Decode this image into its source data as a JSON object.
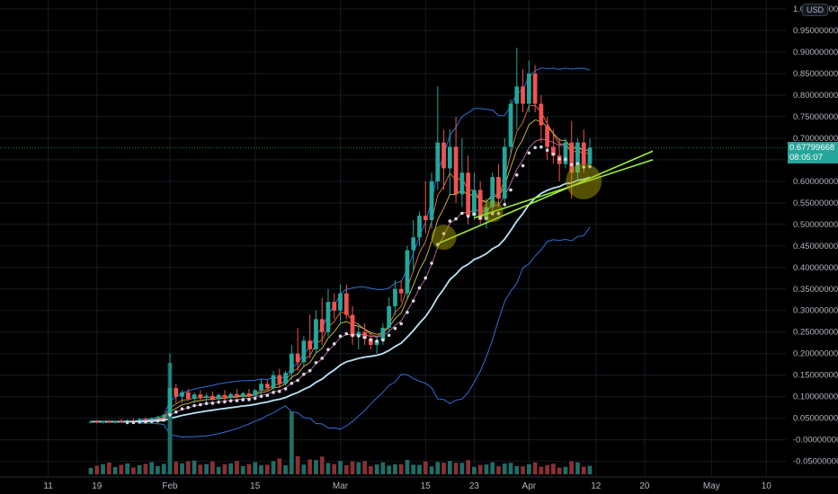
{
  "currency": "USD",
  "last_price": {
    "value": "0.67799668",
    "countdown": "08:05:07"
  },
  "colors": {
    "background": "#000000",
    "grid": "#151c24",
    "up": "#26a69a",
    "down": "#ef5350",
    "bb": "#2f6fd8",
    "ma_slow": "#b9e3f5",
    "psar": "#d8d8e4",
    "trendline": "#9cf03c",
    "circle": "#b8b000",
    "text": "#b2b5be"
  },
  "chart_data": {
    "type": "candlestick",
    "title": "",
    "y_ticks": [
      "1.00000000",
      "0.95000000",
      "0.90000000",
      "0.85000000",
      "0.80000000",
      "0.75000000",
      "0.70000000",
      "0.65000000",
      "0.60000000",
      "0.55000000",
      "0.50000000",
      "0.45000000",
      "0.40000000",
      "0.35000000",
      "0.30000000",
      "0.25000000",
      "0.20000000",
      "0.15000000",
      "0.10000000",
      "0.05000000",
      "-0.00000000",
      "-0.05000000"
    ],
    "ylim": [
      -0.055,
      1.0
    ],
    "x_ticks": [
      {
        "label": "11",
        "day": -20
      },
      {
        "label": "19",
        "day": -12
      },
      {
        "label": "Feb",
        "day": 0
      },
      {
        "label": "15",
        "day": 14
      },
      {
        "label": "Mar",
        "day": 28
      },
      {
        "label": "15",
        "day": 42
      },
      {
        "label": "23",
        "day": 50
      },
      {
        "label": "Apr",
        "day": 59
      },
      {
        "label": "12",
        "day": 70
      },
      {
        "label": "20",
        "day": 78
      },
      {
        "label": "May",
        "day": 89
      },
      {
        "label": "10",
        "day": 98
      }
    ],
    "candles": [
      {
        "o": 0.04,
        "h": 0.045,
        "l": 0.038,
        "c": 0.042
      },
      {
        "o": 0.042,
        "h": 0.046,
        "l": 0.038,
        "c": 0.04
      },
      {
        "o": 0.04,
        "h": 0.045,
        "l": 0.038,
        "c": 0.043
      },
      {
        "o": 0.043,
        "h": 0.046,
        "l": 0.039,
        "c": 0.041
      },
      {
        "o": 0.041,
        "h": 0.045,
        "l": 0.038,
        "c": 0.044
      },
      {
        "o": 0.044,
        "h": 0.048,
        "l": 0.04,
        "c": 0.042
      },
      {
        "o": 0.042,
        "h": 0.047,
        "l": 0.04,
        "c": 0.045
      },
      {
        "o": 0.045,
        "h": 0.05,
        "l": 0.042,
        "c": 0.043
      },
      {
        "o": 0.043,
        "h": 0.05,
        "l": 0.041,
        "c": 0.048
      },
      {
        "o": 0.048,
        "h": 0.052,
        "l": 0.044,
        "c": 0.046
      },
      {
        "o": 0.046,
        "h": 0.052,
        "l": 0.044,
        "c": 0.05
      },
      {
        "o": 0.05,
        "h": 0.056,
        "l": 0.046,
        "c": 0.053
      },
      {
        "o": 0.053,
        "h": 0.06,
        "l": 0.048,
        "c": 0.058
      },
      {
        "o": 0.058,
        "h": 0.2,
        "l": 0.05,
        "c": 0.12
      },
      {
        "o": 0.12,
        "h": 0.13,
        "l": 0.085,
        "c": 0.1
      },
      {
        "o": 0.1,
        "h": 0.115,
        "l": 0.085,
        "c": 0.11
      },
      {
        "o": 0.11,
        "h": 0.118,
        "l": 0.09,
        "c": 0.095
      },
      {
        "o": 0.095,
        "h": 0.11,
        "l": 0.085,
        "c": 0.105
      },
      {
        "o": 0.105,
        "h": 0.115,
        "l": 0.09,
        "c": 0.098
      },
      {
        "o": 0.098,
        "h": 0.108,
        "l": 0.088,
        "c": 0.102
      },
      {
        "o": 0.102,
        "h": 0.112,
        "l": 0.09,
        "c": 0.094
      },
      {
        "o": 0.094,
        "h": 0.108,
        "l": 0.088,
        "c": 0.104
      },
      {
        "o": 0.104,
        "h": 0.115,
        "l": 0.092,
        "c": 0.098
      },
      {
        "o": 0.098,
        "h": 0.11,
        "l": 0.09,
        "c": 0.106
      },
      {
        "o": 0.106,
        "h": 0.118,
        "l": 0.096,
        "c": 0.1
      },
      {
        "o": 0.1,
        "h": 0.112,
        "l": 0.092,
        "c": 0.108
      },
      {
        "o": 0.108,
        "h": 0.118,
        "l": 0.098,
        "c": 0.102
      },
      {
        "o": 0.102,
        "h": 0.118,
        "l": 0.095,
        "c": 0.115
      },
      {
        "o": 0.115,
        "h": 0.14,
        "l": 0.105,
        "c": 0.13
      },
      {
        "o": 0.13,
        "h": 0.14,
        "l": 0.115,
        "c": 0.12
      },
      {
        "o": 0.12,
        "h": 0.16,
        "l": 0.115,
        "c": 0.15
      },
      {
        "o": 0.15,
        "h": 0.165,
        "l": 0.12,
        "c": 0.13
      },
      {
        "o": 0.13,
        "h": 0.16,
        "l": 0.125,
        "c": 0.155
      },
      {
        "o": 0.155,
        "h": 0.22,
        "l": 0.14,
        "c": 0.2
      },
      {
        "o": 0.2,
        "h": 0.26,
        "l": 0.16,
        "c": 0.18
      },
      {
        "o": 0.18,
        "h": 0.24,
        "l": 0.17,
        "c": 0.23
      },
      {
        "o": 0.23,
        "h": 0.29,
        "l": 0.19,
        "c": 0.21
      },
      {
        "o": 0.21,
        "h": 0.3,
        "l": 0.2,
        "c": 0.28
      },
      {
        "o": 0.28,
        "h": 0.33,
        "l": 0.22,
        "c": 0.25
      },
      {
        "o": 0.25,
        "h": 0.35,
        "l": 0.24,
        "c": 0.32
      },
      {
        "o": 0.32,
        "h": 0.34,
        "l": 0.28,
        "c": 0.3
      },
      {
        "o": 0.3,
        "h": 0.36,
        "l": 0.27,
        "c": 0.34
      },
      {
        "o": 0.34,
        "h": 0.36,
        "l": 0.28,
        "c": 0.29
      },
      {
        "o": 0.29,
        "h": 0.31,
        "l": 0.22,
        "c": 0.24
      },
      {
        "o": 0.24,
        "h": 0.27,
        "l": 0.21,
        "c": 0.25
      },
      {
        "o": 0.25,
        "h": 0.27,
        "l": 0.22,
        "c": 0.235
      },
      {
        "o": 0.235,
        "h": 0.25,
        "l": 0.21,
        "c": 0.22
      },
      {
        "o": 0.22,
        "h": 0.24,
        "l": 0.2,
        "c": 0.23
      },
      {
        "o": 0.23,
        "h": 0.27,
        "l": 0.22,
        "c": 0.26
      },
      {
        "o": 0.26,
        "h": 0.33,
        "l": 0.25,
        "c": 0.31
      },
      {
        "o": 0.31,
        "h": 0.37,
        "l": 0.29,
        "c": 0.35
      },
      {
        "o": 0.35,
        "h": 0.37,
        "l": 0.32,
        "c": 0.34
      },
      {
        "o": 0.34,
        "h": 0.45,
        "l": 0.33,
        "c": 0.44
      },
      {
        "o": 0.44,
        "h": 0.51,
        "l": 0.39,
        "c": 0.47
      },
      {
        "o": 0.47,
        "h": 0.53,
        "l": 0.45,
        "c": 0.52
      },
      {
        "o": 0.52,
        "h": 0.6,
        "l": 0.48,
        "c": 0.51
      },
      {
        "o": 0.51,
        "h": 0.62,
        "l": 0.49,
        "c": 0.6
      },
      {
        "o": 0.6,
        "h": 0.82,
        "l": 0.58,
        "c": 0.69
      },
      {
        "o": 0.69,
        "h": 0.72,
        "l": 0.58,
        "c": 0.63
      },
      {
        "o": 0.63,
        "h": 0.72,
        "l": 0.57,
        "c": 0.68
      },
      {
        "o": 0.68,
        "h": 0.75,
        "l": 0.55,
        "c": 0.57
      },
      {
        "o": 0.57,
        "h": 0.7,
        "l": 0.54,
        "c": 0.62
      },
      {
        "o": 0.62,
        "h": 0.66,
        "l": 0.5,
        "c": 0.52
      },
      {
        "o": 0.52,
        "h": 0.62,
        "l": 0.51,
        "c": 0.58
      },
      {
        "o": 0.58,
        "h": 0.6,
        "l": 0.5,
        "c": 0.51
      },
      {
        "o": 0.51,
        "h": 0.56,
        "l": 0.49,
        "c": 0.54
      },
      {
        "o": 0.54,
        "h": 0.62,
        "l": 0.53,
        "c": 0.61
      },
      {
        "o": 0.61,
        "h": 0.64,
        "l": 0.54,
        "c": 0.56
      },
      {
        "o": 0.56,
        "h": 0.7,
        "l": 0.55,
        "c": 0.68
      },
      {
        "o": 0.68,
        "h": 0.79,
        "l": 0.66,
        "c": 0.78
      },
      {
        "o": 0.78,
        "h": 0.91,
        "l": 0.72,
        "c": 0.82
      },
      {
        "o": 0.82,
        "h": 0.86,
        "l": 0.76,
        "c": 0.78
      },
      {
        "o": 0.78,
        "h": 0.88,
        "l": 0.76,
        "c": 0.85
      },
      {
        "o": 0.85,
        "h": 0.87,
        "l": 0.76,
        "c": 0.78
      },
      {
        "o": 0.78,
        "h": 0.8,
        "l": 0.69,
        "c": 0.73
      },
      {
        "o": 0.73,
        "h": 0.75,
        "l": 0.65,
        "c": 0.68
      },
      {
        "o": 0.68,
        "h": 0.72,
        "l": 0.64,
        "c": 0.66
      },
      {
        "o": 0.66,
        "h": 0.7,
        "l": 0.6,
        "c": 0.64
      },
      {
        "o": 0.64,
        "h": 0.7,
        "l": 0.63,
        "c": 0.69
      },
      {
        "o": 0.69,
        "h": 0.74,
        "l": 0.56,
        "c": 0.62
      },
      {
        "o": 0.62,
        "h": 0.7,
        "l": 0.6,
        "c": 0.69
      },
      {
        "o": 0.69,
        "h": 0.72,
        "l": 0.62,
        "c": 0.64
      },
      {
        "o": 0.64,
        "h": 0.7,
        "l": 0.63,
        "c": 0.678
      }
    ]
  }
}
